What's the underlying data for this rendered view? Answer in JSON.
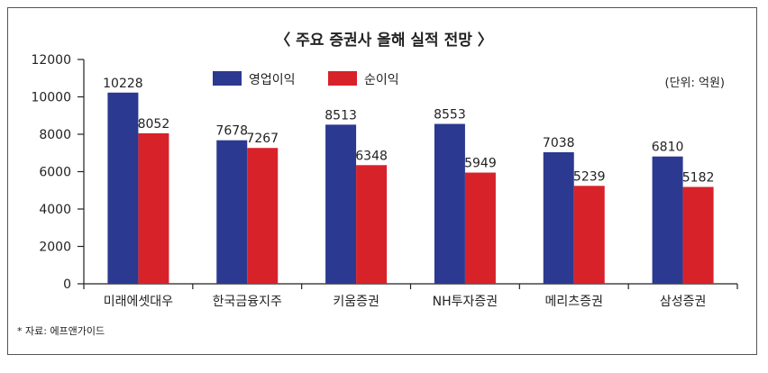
{
  "chart_data": {
    "type": "bar",
    "title": "〈 주요 증권사 올해 실적 전망 〉",
    "unit_note": "(단위: 억원)",
    "source_note": "* 자료: 에프앤가이드",
    "categories": [
      "미래에셋대우",
      "한국금융지주",
      "키움증권",
      "NH투자증권",
      "메리츠증권",
      "삼성증권"
    ],
    "series": [
      {
        "name": "영업이익",
        "color": "#2b3990",
        "values": [
          10228,
          7678,
          8513,
          8553,
          7038,
          6810
        ]
      },
      {
        "name": "순이익",
        "color": "#d7222a",
        "values": [
          8052,
          7267,
          6348,
          5949,
          5239,
          5182
        ]
      }
    ],
    "ylim": [
      0,
      12000
    ],
    "yticks": [
      0,
      2000,
      4000,
      6000,
      8000,
      10000,
      12000
    ],
    "grid": false,
    "legend_position": "top"
  }
}
